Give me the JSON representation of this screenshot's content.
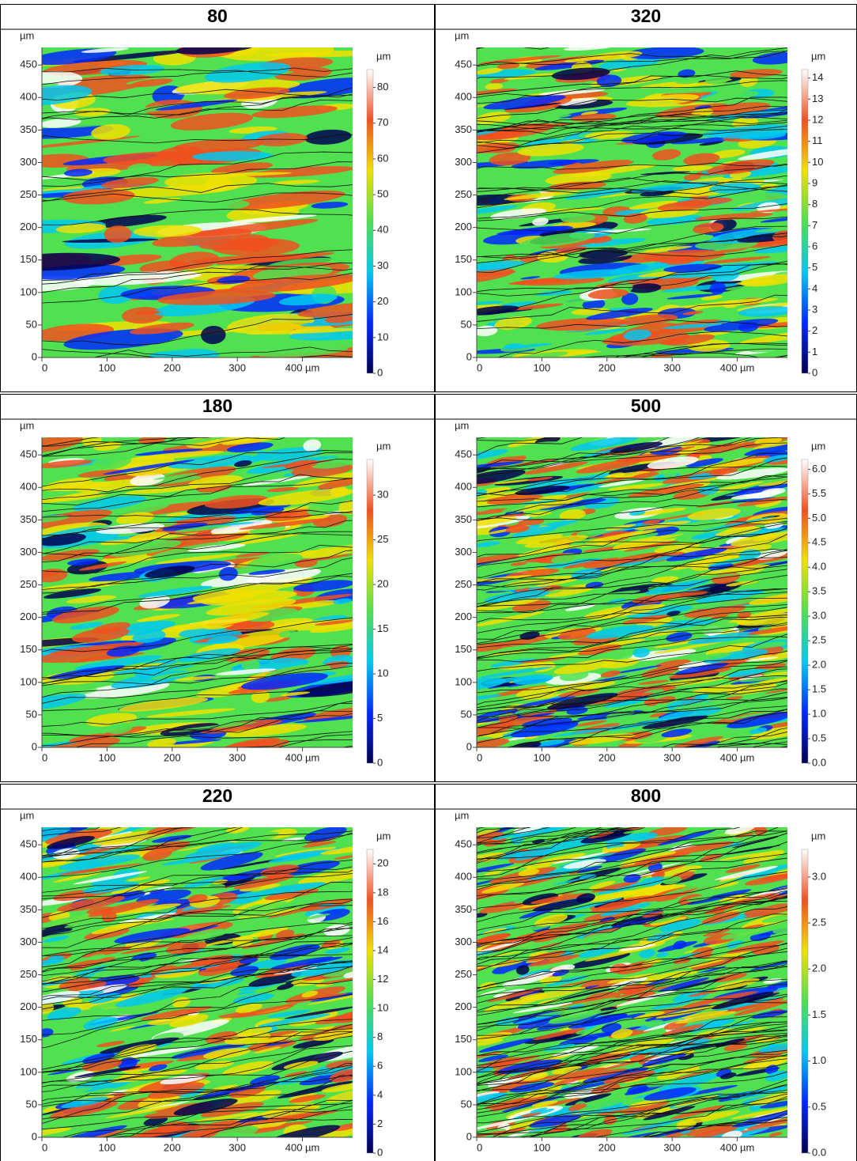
{
  "chart_data": [
    {
      "type": "heatmap",
      "title": "80",
      "ylabel": "µm",
      "colorbar_label": "µm",
      "xlim": [
        0,
        477
      ],
      "ylim": [
        0,
        477
      ],
      "xticks": [
        0,
        100,
        200,
        300,
        {
          "value": 400,
          "label": "400 µm"
        }
      ],
      "yticks": [
        0,
        50,
        100,
        150,
        200,
        250,
        300,
        350,
        400,
        450
      ],
      "zlim": [
        0,
        85
      ],
      "zticks": [
        0,
        10,
        20,
        30,
        40,
        50,
        60,
        70,
        80
      ],
      "colormap": [
        "#000050",
        "#0028ff",
        "#00c8f0",
        "#50e050",
        "#f0e000",
        "#f05020",
        "#ffffff"
      ]
    },
    {
      "type": "heatmap",
      "title": "320",
      "ylabel": "µm",
      "colorbar_label": "µm",
      "xlim": [
        0,
        477
      ],
      "ylim": [
        0,
        477
      ],
      "xticks": [
        0,
        100,
        200,
        300,
        {
          "value": 400,
          "label": "400 µm"
        }
      ],
      "yticks": [
        0,
        50,
        100,
        150,
        200,
        250,
        300,
        350,
        400,
        450
      ],
      "zlim": [
        0,
        14.4
      ],
      "zticks": [
        0,
        1,
        2,
        3,
        4,
        5,
        6,
        7,
        8,
        9,
        10,
        11,
        12,
        13,
        14
      ],
      "colormap": [
        "#000050",
        "#0028ff",
        "#00c8f0",
        "#50e050",
        "#f0e000",
        "#f05020",
        "#ffffff"
      ]
    },
    {
      "type": "heatmap",
      "title": "180",
      "ylabel": "µm",
      "colorbar_label": "µm",
      "xlim": [
        0,
        477
      ],
      "ylim": [
        0,
        477
      ],
      "xticks": [
        0,
        100,
        200,
        300,
        {
          "value": 400,
          "label": "400 µm"
        }
      ],
      "yticks": [
        0,
        50,
        100,
        150,
        200,
        250,
        300,
        350,
        400,
        450
      ],
      "zlim": [
        0,
        34
      ],
      "zticks": [
        0,
        5,
        10,
        15,
        20,
        25,
        30
      ],
      "colormap": [
        "#000050",
        "#0028ff",
        "#00c8f0",
        "#50e050",
        "#f0e000",
        "#f05020",
        "#ffffff"
      ]
    },
    {
      "type": "heatmap",
      "title": "500",
      "ylabel": "µm",
      "colorbar_label": "µm",
      "xlim": [
        0,
        477
      ],
      "ylim": [
        0,
        477
      ],
      "xticks": [
        0,
        100,
        200,
        300,
        {
          "value": 400,
          "label": "400 µm"
        }
      ],
      "yticks": [
        0,
        50,
        100,
        150,
        200,
        250,
        300,
        350,
        400,
        450
      ],
      "zlim": [
        0,
        6.2
      ],
      "zticks": [
        {
          "value": 0,
          "label": "0.0"
        },
        0.5,
        {
          "value": 1,
          "label": "1.0"
        },
        1.5,
        {
          "value": 2,
          "label": "2.0"
        },
        2.5,
        {
          "value": 3,
          "label": "3.0"
        },
        3.5,
        {
          "value": 4,
          "label": "4.0"
        },
        4.5,
        {
          "value": 5,
          "label": "5.0"
        },
        5.5,
        {
          "value": 6,
          "label": "6.0"
        }
      ],
      "colormap": [
        "#000050",
        "#0028ff",
        "#00c8f0",
        "#50e050",
        "#f0e000",
        "#f05020",
        "#ffffff"
      ]
    },
    {
      "type": "heatmap",
      "title": "220",
      "ylabel": "µm",
      "colorbar_label": "µm",
      "xlim": [
        0,
        477
      ],
      "ylim": [
        0,
        477
      ],
      "xticks": [
        0,
        100,
        200,
        300,
        {
          "value": 400,
          "label": "400 µm"
        }
      ],
      "yticks": [
        0,
        50,
        100,
        150,
        200,
        250,
        300,
        350,
        400,
        450
      ],
      "zlim": [
        0,
        21
      ],
      "zticks": [
        0,
        2,
        4,
        6,
        8,
        10,
        12,
        14,
        16,
        18,
        20
      ],
      "colormap": [
        "#000050",
        "#0028ff",
        "#00c8f0",
        "#50e050",
        "#f0e000",
        "#f05020",
        "#ffffff"
      ]
    },
    {
      "type": "heatmap",
      "title": "800",
      "ylabel": "µm",
      "colorbar_label": "µm",
      "xlim": [
        0,
        477
      ],
      "ylim": [
        0,
        477
      ],
      "xticks": [
        0,
        100,
        200,
        300,
        {
          "value": 400,
          "label": "400 µm"
        }
      ],
      "yticks": [
        0,
        50,
        100,
        150,
        200,
        250,
        300,
        350,
        400,
        450
      ],
      "zlim": [
        0,
        3.3
      ],
      "zticks": [
        {
          "value": 0,
          "label": "0.0"
        },
        0.5,
        {
          "value": 1,
          "label": "1.0"
        },
        1.5,
        {
          "value": 2,
          "label": "2.0"
        },
        2.5,
        {
          "value": 3,
          "label": "3.0"
        }
      ],
      "colormap": [
        "#000050",
        "#0028ff",
        "#00c8f0",
        "#50e050",
        "#f0e000",
        "#f05020",
        "#ffffff"
      ]
    }
  ]
}
